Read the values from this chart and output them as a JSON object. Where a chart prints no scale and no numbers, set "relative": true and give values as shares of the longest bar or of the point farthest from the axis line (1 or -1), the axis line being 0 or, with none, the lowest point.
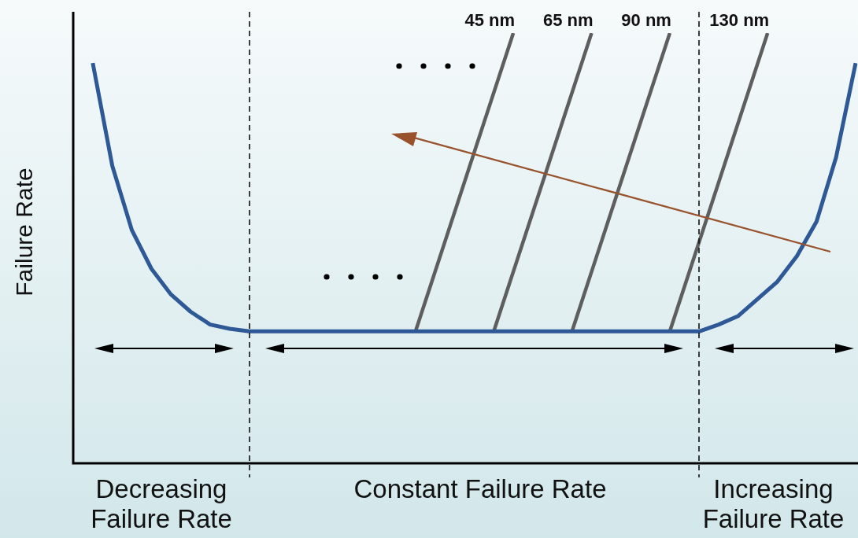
{
  "chart_data": {
    "type": "line",
    "relative": true,
    "ylabel": "Failure Rate",
    "categories": [
      null,
      null,
      null,
      null,
      null,
      null,
      null,
      null,
      null,
      null,
      null,
      null,
      null,
      null,
      null,
      null,
      null,
      null,
      null,
      null,
      null,
      null,
      null,
      null,
      null,
      null,
      null,
      null,
      null,
      null,
      null,
      null,
      null,
      null,
      null,
      null,
      null,
      null,
      null,
      null,
      null,
      null,
      null,
      null,
      null,
      null,
      null,
      null,
      null,
      null,
      null,
      null,
      null,
      null,
      null,
      null,
      null,
      null,
      null,
      null,
      null,
      null,
      null,
      null,
      null,
      null,
      null,
      null,
      null,
      null,
      null,
      null,
      null,
      null,
      null,
      null,
      null,
      null,
      null,
      null,
      null
    ],
    "series": [
      {
        "color": "#2e5896",
        "values": [
          null,
          null,
          0.93,
          null,
          0.69,
          null,
          0.54,
          null,
          0.45,
          null,
          0.39,
          null,
          0.35,
          null,
          0.32,
          null,
          0.31,
          null,
          0.304,
          null,
          null,
          null,
          null,
          null,
          null,
          null,
          null,
          null,
          null,
          null,
          null,
          null,
          null,
          null,
          null,
          null,
          null,
          null,
          null,
          null,
          null,
          null,
          null,
          null,
          null,
          null,
          null,
          null,
          null,
          null,
          null,
          null,
          null,
          null,
          null,
          null,
          null,
          null,
          null,
          null,
          null,
          null,
          null,
          null,
          0.304,
          null,
          0.32,
          null,
          0.34,
          null,
          0.38,
          null,
          0.42,
          null,
          0.48,
          null,
          0.56,
          null,
          0.71,
          null,
          0.93
        ]
      },
      {
        "name": "45 nm",
        "color": "#5e5e5e",
        "values": [
          null,
          null,
          null,
          null,
          null,
          null,
          null,
          null,
          null,
          null,
          null,
          null,
          null,
          null,
          null,
          null,
          null,
          null,
          null,
          null,
          null,
          null,
          null,
          null,
          null,
          null,
          null,
          null,
          null,
          null,
          null,
          null,
          null,
          null,
          null,
          0.304,
          null,
          null,
          null,
          null,
          null,
          null,
          null,
          null,
          null,
          1,
          null,
          null,
          null,
          null,
          null,
          null,
          null,
          null,
          null,
          null,
          null,
          null,
          null,
          null,
          null,
          null,
          null,
          null,
          null,
          null,
          null,
          null,
          null,
          null,
          null,
          null,
          null,
          null,
          null,
          null,
          null,
          null,
          null,
          null,
          null
        ]
      },
      {
        "name": "65 nm",
        "color": "#5e5e5e",
        "values": [
          null,
          null,
          null,
          null,
          null,
          null,
          null,
          null,
          null,
          null,
          null,
          null,
          null,
          null,
          null,
          null,
          null,
          null,
          null,
          null,
          null,
          null,
          null,
          null,
          null,
          null,
          null,
          null,
          null,
          null,
          null,
          null,
          null,
          null,
          null,
          null,
          null,
          null,
          null,
          null,
          null,
          null,
          null,
          0.304,
          null,
          null,
          null,
          null,
          null,
          null,
          null,
          null,
          null,
          1,
          null,
          null,
          null,
          null,
          null,
          null,
          null,
          null,
          null,
          null,
          null,
          null,
          null,
          null,
          null,
          null,
          null,
          null,
          null,
          null,
          null,
          null,
          null,
          null,
          null,
          null,
          null
        ]
      },
      {
        "name": "90 nm",
        "color": "#5e5e5e",
        "values": [
          null,
          null,
          null,
          null,
          null,
          null,
          null,
          null,
          null,
          null,
          null,
          null,
          null,
          null,
          null,
          null,
          null,
          null,
          null,
          null,
          null,
          null,
          null,
          null,
          null,
          null,
          null,
          null,
          null,
          null,
          null,
          null,
          null,
          null,
          null,
          null,
          null,
          null,
          null,
          null,
          null,
          null,
          null,
          null,
          null,
          null,
          null,
          null,
          null,
          null,
          null,
          0.304,
          null,
          null,
          null,
          null,
          null,
          null,
          null,
          null,
          null,
          1,
          null,
          null,
          null,
          null,
          null,
          null,
          null,
          null,
          null,
          null,
          null,
          null,
          null,
          null,
          null,
          null,
          null,
          null,
          null
        ]
      },
      {
        "name": "130 nm",
        "color": "#5e5e5e",
        "values": [
          null,
          null,
          null,
          null,
          null,
          null,
          null,
          null,
          null,
          null,
          null,
          null,
          null,
          null,
          null,
          null,
          null,
          null,
          null,
          null,
          null,
          null,
          null,
          null,
          null,
          null,
          null,
          null,
          null,
          null,
          null,
          null,
          null,
          null,
          null,
          null,
          null,
          null,
          null,
          null,
          null,
          null,
          null,
          null,
          null,
          null,
          null,
          null,
          null,
          null,
          null,
          null,
          null,
          null,
          null,
          null,
          null,
          null,
          null,
          null,
          null,
          0.304,
          null,
          null,
          null,
          null,
          null,
          null,
          null,
          null,
          null,
          1,
          null,
          null,
          null,
          null,
          null,
          null,
          null,
          null,
          null
        ]
      }
    ],
    "annotations": [
      "Decreasing Failure Rate",
      "Constant Failure Rate",
      "Increasing Failure Rate"
    ]
  }
}
